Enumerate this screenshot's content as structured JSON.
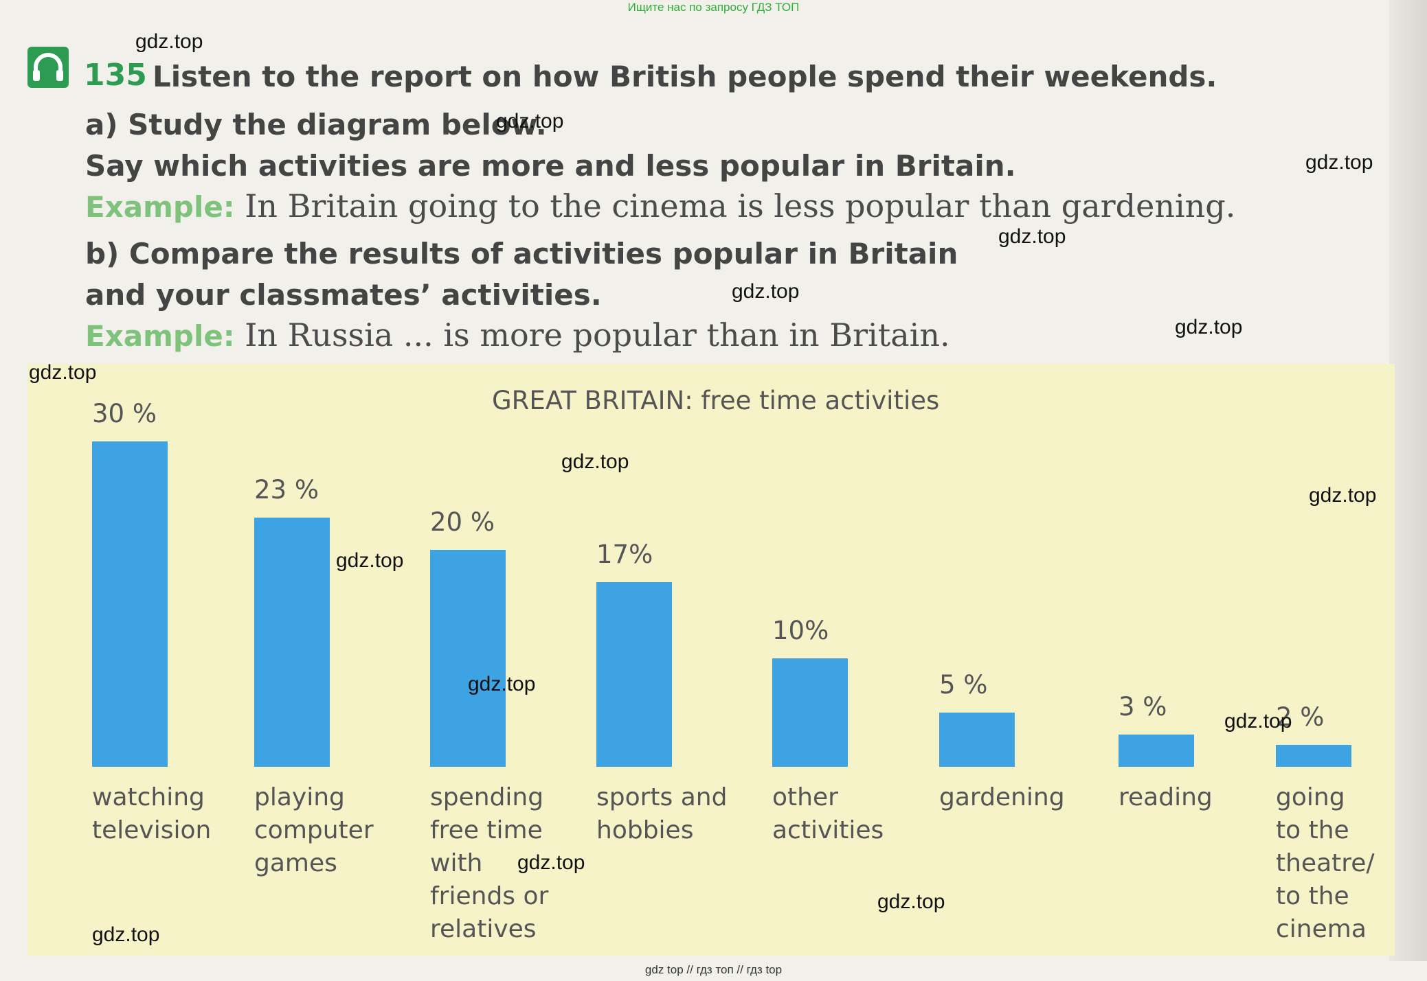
{
  "top_banner": "Ищите нас по запросу ГДЗ ТОП",
  "footer_banner": "gdz top  //  гдз топ  //  гдз top",
  "exercise": {
    "number": "135",
    "line1": "Listen to the report on how British people spend their weekends.",
    "line2": "a) Study the diagram below.",
    "line3": "Say which activities are more and less popular in Britain.",
    "example_label": "Example:",
    "example1": "In Britain going to the cinema is less popular than gardening.",
    "line4": "b) Compare the results of activities popular in Britain",
    "line5": "and your classmates’ activities.",
    "example2": "In Russia ... is more popular than in Britain."
  },
  "watermark_text": "gdz.top",
  "chart_data": {
    "type": "bar",
    "title": "GREAT BRITAIN: free time activities",
    "categories": [
      [
        "watching",
        "television"
      ],
      [
        "playing",
        "computer",
        "games"
      ],
      [
        "spending",
        "free time",
        "with",
        "friends or",
        "relatives"
      ],
      [
        "sports and",
        "hobbies"
      ],
      [
        "other",
        "activities"
      ],
      [
        "gardening"
      ],
      [
        "reading"
      ],
      [
        "going",
        "to the",
        "theatre/",
        "to the",
        "cinema"
      ]
    ],
    "values": [
      30,
      23,
      20,
      17,
      10,
      5,
      3,
      2
    ],
    "value_labels": [
      "30 %",
      "23 %",
      "20 %",
      "17%",
      "10%",
      "5 %",
      "3 %",
      "2 %"
    ],
    "ylim": [
      0,
      30
    ],
    "bar_color": "#3da3e2"
  }
}
